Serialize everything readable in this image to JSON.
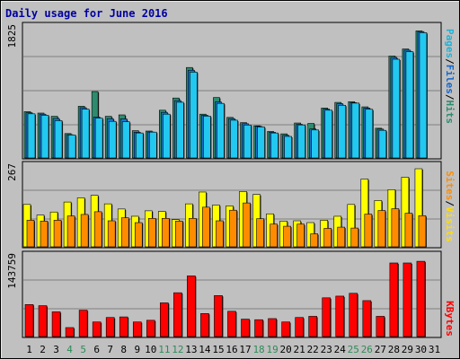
{
  "title": "Daily usage for June 2016",
  "colors": {
    "panel_bg": "#c0c0c0",
    "plot_bg": "#c0c0c0",
    "grid": "#808080",
    "pages": "#1aa3c4",
    "files": "#1478d0",
    "hits": "#2e8b6e",
    "visits": "#ffff00",
    "sites": "#ff8c00",
    "kbytes": "#ff0000",
    "weekend": "#2e8b57",
    "weekday": "#000000",
    "sep": "#000000"
  },
  "legends": {
    "top": [
      {
        "text": "Pages",
        "color": "#1fb2d6"
      },
      {
        "text": "/",
        "color": "#000000"
      },
      {
        "text": "Files",
        "color": "#1466cc"
      },
      {
        "text": "/",
        "color": "#000000"
      },
      {
        "text": "Hits",
        "color": "#2e8b6e"
      }
    ],
    "mid": [
      {
        "text": "Sites",
        "color": "#ff8c00"
      },
      {
        "text": "/",
        "color": "#000000"
      },
      {
        "text": "Visits",
        "color": "#ffdd00"
      }
    ],
    "bot": [
      {
        "text": "KBytes",
        "color": "#ff0000"
      }
    ]
  },
  "chart_data": [
    {
      "type": "bar",
      "name": "hits-files-pages",
      "ymax_label": "1825",
      "ylim": [
        0,
        1825
      ],
      "categories": [
        "1",
        "2",
        "3",
        "4",
        "5",
        "6",
        "7",
        "8",
        "9",
        "10",
        "11",
        "12",
        "13",
        "14",
        "15",
        "16",
        "17",
        "18",
        "19",
        "20",
        "21",
        "22",
        "23",
        "24",
        "25",
        "26",
        "27",
        "28",
        "29",
        "30",
        "31"
      ],
      "weekend": [
        4,
        5,
        11,
        12,
        18,
        19,
        25,
        26
      ],
      "series": [
        {
          "name": "Hits",
          "values": [
            645,
            625,
            580,
            340,
            720,
            925,
            580,
            600,
            380,
            375,
            665,
            835,
            1260,
            610,
            842,
            565,
            492,
            448,
            369,
            336,
            487,
            481,
            695,
            774,
            784,
            712,
            414,
            1420,
            1518,
            1770,
            0
          ]
        },
        {
          "name": "Files",
          "values": [
            630,
            610,
            550,
            325,
            700,
            570,
            548,
            545,
            358,
            362,
            635,
            799,
            1222,
            596,
            780,
            548,
            477,
            440,
            358,
            315,
            468,
            404,
            680,
            755,
            770,
            695,
            402,
            1400,
            1501,
            1760,
            0
          ]
        },
        {
          "name": "Pages",
          "values": [
            615,
            595,
            520,
            320,
            680,
            555,
            510,
            505,
            348,
            360,
            610,
            776,
            1196,
            583,
            760,
            526,
            459,
            432,
            348,
            300,
            460,
            390,
            665,
            734,
            764,
            678,
            385,
            1375,
            1480,
            1745,
            0
          ]
        }
      ]
    },
    {
      "type": "bar",
      "name": "visits-sites",
      "ymax_label": "267",
      "ylim": [
        0,
        267
      ],
      "categories": [
        "1",
        "2",
        "3",
        "4",
        "5",
        "6",
        "7",
        "8",
        "9",
        "10",
        "11",
        "12",
        "13",
        "14",
        "15",
        "16",
        "17",
        "18",
        "19",
        "20",
        "21",
        "22",
        "23",
        "24",
        "25",
        "26",
        "27",
        "28",
        "29",
        "30",
        "31"
      ],
      "series": [
        {
          "name": "Visits",
          "values": [
            140,
            105,
            115,
            148,
            162,
            170,
            142,
            125,
            101,
            119,
            117,
            90,
            142,
            181,
            138,
            135,
            183,
            173,
            109,
            85,
            86,
            80,
            88,
            101,
            140,
            224,
            153,
            189,
            230,
            258,
            0
          ]
        },
        {
          "name": "Sites",
          "values": [
            88,
            85,
            88,
            102,
            107,
            116,
            86,
            96,
            80,
            94,
            94,
            85,
            94,
            131,
            86,
            121,
            145,
            93,
            75,
            68,
            75,
            43,
            61,
            65,
            62,
            108,
            120,
            126,
            111,
            103,
            0
          ]
        }
      ]
    },
    {
      "type": "bar",
      "name": "kbytes",
      "ymax_label": "143759",
      "ylim": [
        0,
        143759
      ],
      "categories": [
        "1",
        "2",
        "3",
        "4",
        "5",
        "6",
        "7",
        "8",
        "9",
        "10",
        "11",
        "12",
        "13",
        "14",
        "15",
        "16",
        "17",
        "18",
        "19",
        "20",
        "21",
        "22",
        "23",
        "24",
        "25",
        "26",
        "27",
        "28",
        "29",
        "30",
        "31"
      ],
      "series": [
        {
          "name": "KBytes",
          "values": [
            57000,
            55000,
            44000,
            16000,
            47000,
            26000,
            34000,
            35000,
            26000,
            29000,
            60000,
            78000,
            108000,
            41000,
            73000,
            45000,
            31000,
            30000,
            32000,
            26000,
            34000,
            36000,
            69000,
            72000,
            77000,
            64000,
            36000,
            131000,
            131000,
            134000,
            0
          ]
        }
      ]
    }
  ]
}
